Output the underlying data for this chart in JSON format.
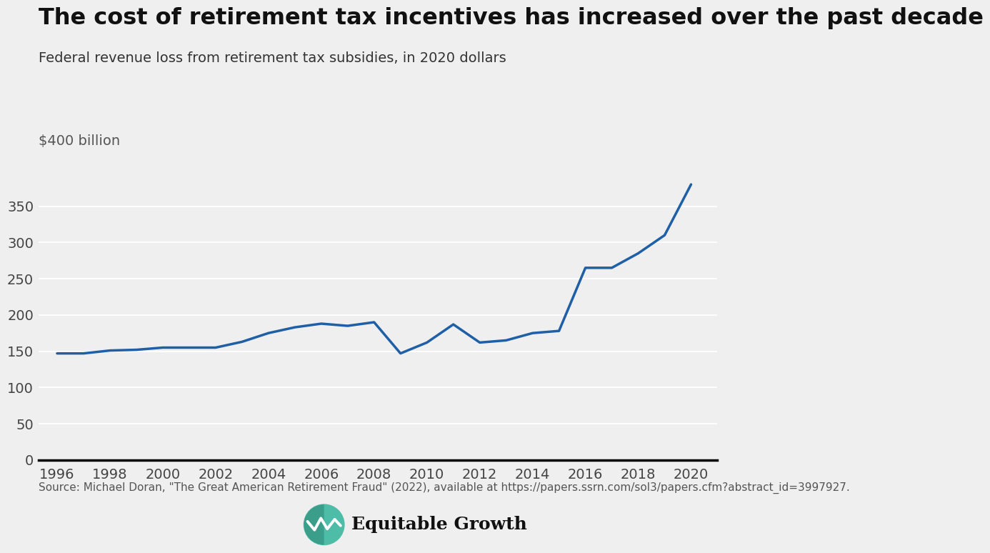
{
  "title": "The cost of retirement tax incentives has increased over the past decade",
  "subtitle": "Federal revenue loss from retirement tax subsidies, in 2020 dollars",
  "ylabel_top": "$400 billion",
  "source": "Source: Michael Doran, \"The Great American Retirement Fraud\" (2022), available at https://papers.ssrn.com/sol3/papers.cfm?abstract_id=3997927.",
  "background_color": "#efefef",
  "line_color": "#1f5fa6",
  "line_width": 2.5,
  "years": [
    1996,
    1997,
    1998,
    1999,
    2000,
    2001,
    2002,
    2003,
    2004,
    2005,
    2006,
    2007,
    2008,
    2009,
    2010,
    2011,
    2012,
    2013,
    2014,
    2015,
    2016,
    2017,
    2018,
    2019,
    2020
  ],
  "values": [
    147,
    147,
    151,
    152,
    155,
    155,
    155,
    163,
    175,
    183,
    188,
    185,
    190,
    147,
    162,
    187,
    162,
    165,
    175,
    178,
    265,
    265,
    285,
    310,
    380
  ],
  "yticks": [
    0,
    50,
    100,
    150,
    200,
    250,
    300,
    350
  ],
  "xticks": [
    1996,
    1998,
    2000,
    2002,
    2004,
    2006,
    2008,
    2010,
    2012,
    2014,
    2016,
    2018,
    2020
  ],
  "ylim": [
    0,
    415
  ],
  "xlim": [
    1995.3,
    2021.0
  ],
  "title_fontsize": 23,
  "subtitle_fontsize": 14,
  "tick_fontsize": 14,
  "source_fontsize": 11,
  "ylabel_top_fontsize": 14
}
